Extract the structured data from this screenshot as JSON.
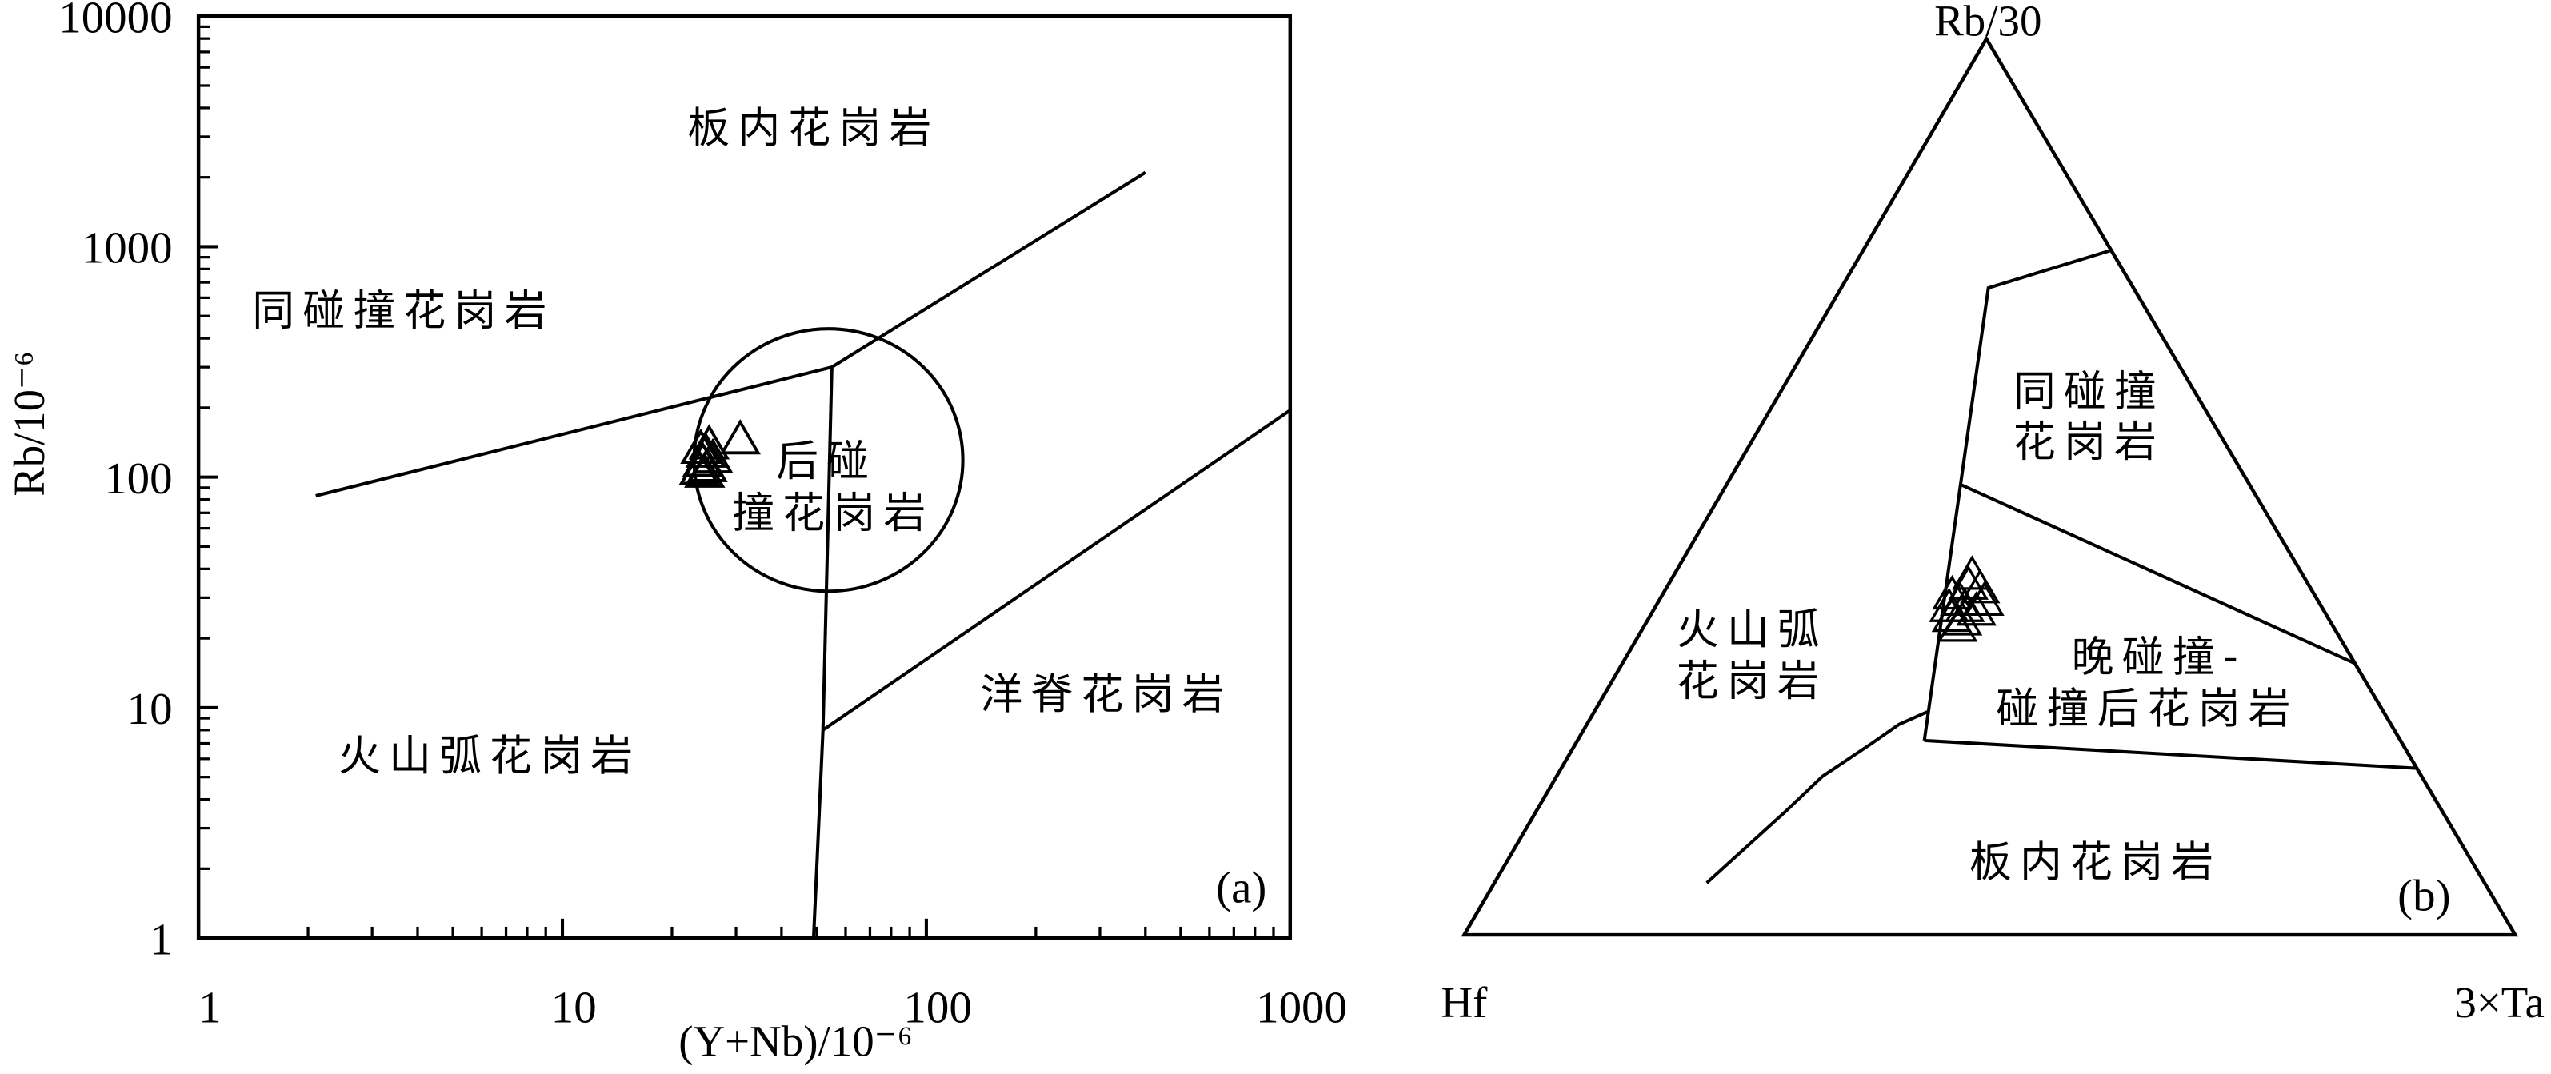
{
  "chart_data": [
    {
      "type": "scatter",
      "panel_label": "(a)",
      "xlabel": "(Y+Nb)/10⁻⁶",
      "ylabel": "Rb/10⁻⁶",
      "x_scale": "log",
      "y_scale": "log",
      "xlim": [
        1,
        1000
      ],
      "ylim": [
        1,
        10000
      ],
      "x_ticks": [
        1,
        10,
        100,
        1000
      ],
      "x_tick_labels": [
        "1",
        "10",
        "100",
        "1000"
      ],
      "y_ticks": [
        1,
        10,
        100,
        1000,
        10000
      ],
      "y_tick_labels": [
        "1",
        "10",
        "100",
        "1000",
        "10000"
      ],
      "grid": false,
      "marker": "open-triangle",
      "points": [
        [
          24.3,
          116
        ],
        [
          24.8,
          127
        ],
        [
          25.3,
          138
        ],
        [
          23.8,
          107
        ],
        [
          25.0,
          110
        ],
        [
          25.9,
          120
        ],
        [
          24.0,
          132
        ],
        [
          24.6,
          104
        ],
        [
          30.8,
          145
        ]
      ],
      "boundaries": [
        [
          [
            2.1,
            83
          ],
          [
            55,
            300
          ],
          [
            400,
            2100
          ]
        ],
        [
          [
            55,
            300
          ],
          [
            52,
            8
          ],
          [
            49,
            1
          ]
        ],
        [
          [
            52,
            8
          ],
          [
            1000,
            195
          ]
        ]
      ],
      "circle_field": {
        "x_range": [
          23,
          126
        ],
        "y_range": [
          32,
          440
        ]
      },
      "field_labels": [
        {
          "lines": [
            "板内花岗岩"
          ]
        },
        {
          "lines": [
            "同碰撞花岗岩"
          ]
        },
        {
          "lines": [
            "后碰",
            "撞花岗岩"
          ]
        },
        {
          "lines": [
            "洋脊花岗岩"
          ]
        },
        {
          "lines": [
            "火山弧花岗岩"
          ]
        }
      ]
    },
    {
      "type": "scatter",
      "coordinate_system": "ternary",
      "panel_label": "(b)",
      "components": [
        "Rb/30",
        "Hf",
        "3×Ta"
      ],
      "marker": "open-triangle",
      "points": [
        [
          35.4,
          35.8,
          28.8
        ],
        [
          37.2,
          34.1,
          28.7
        ],
        [
          39.0,
          32.4,
          28.6
        ],
        [
          35.0,
          35.0,
          30.0
        ],
        [
          36.1,
          33.1,
          30.8
        ],
        [
          37.2,
          31.8,
          31.0
        ],
        [
          37.9,
          34.5,
          27.6
        ],
        [
          40.1,
          31.5,
          28.4
        ],
        [
          36.5,
          34.0,
          29.5
        ],
        [
          34.3,
          35.8,
          29.9
        ],
        [
          38.6,
          31.5,
          29.9
        ],
        [
          36.5,
          35.5,
          28.0
        ]
      ],
      "boundaries": [
        [
          [
            76.4,
            0,
            23.6
          ],
          [
            72.2,
            13.8,
            14.0
          ],
          [
            21.7,
            45.3,
            33.0
          ]
        ],
        [
          [
            50.2,
            27.4,
            22.4
          ],
          [
            30.3,
            0,
            69.7
          ]
        ],
        [
          [
            21.7,
            45.3,
            33.0
          ],
          [
            18.6,
            0,
            81.4
          ]
        ],
        [
          [
            24.9,
            43.4,
            31.7
          ],
          [
            23.5,
            46.8,
            29.7
          ],
          [
            21.3,
            50.6,
            28.1
          ],
          [
            17.7,
            57.0,
            25.3
          ],
          [
            13.7,
            62.6,
            23.7
          ],
          [
            5.8,
            74.0,
            20.2
          ]
        ]
      ],
      "field_labels": [
        {
          "lines": [
            "同碰撞",
            "花岗岩"
          ]
        },
        {
          "lines": [
            "火山弧",
            "花岗岩"
          ]
        },
        {
          "lines": [
            "晚碰撞-",
            "碰撞后花岗岩"
          ]
        },
        {
          "lines": [
            "板内花岗岩"
          ]
        }
      ]
    }
  ],
  "colors": {
    "ink": "#000000",
    "background": "#ffffff"
  }
}
